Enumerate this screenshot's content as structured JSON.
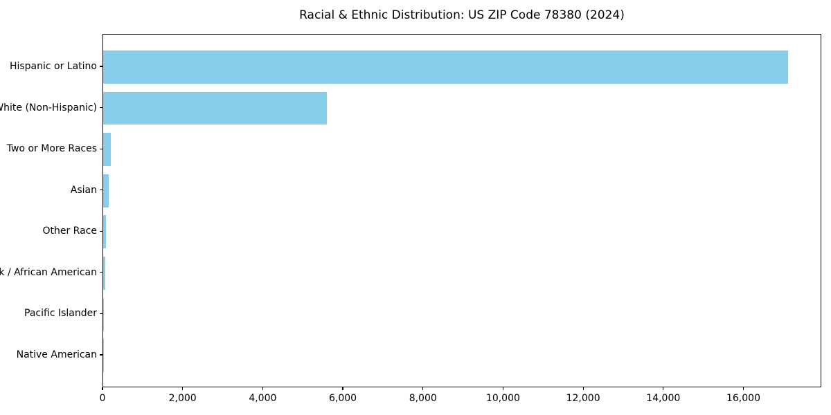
{
  "title": "Racial & Ethnic Distribution: US ZIP Code 78380 (2024)",
  "chart_data": {
    "type": "bar",
    "orientation": "horizontal",
    "title": "Racial & Ethnic Distribution: US ZIP Code 78380 (2024)",
    "xlabel": "",
    "ylabel": "",
    "categories": [
      "Hispanic or Latino",
      "White (Non-Hispanic)",
      "Two or More Races",
      "Asian",
      "Other Race",
      "Black / African American",
      "Pacific Islander",
      "Native American"
    ],
    "values": [
      17090,
      5580,
      185,
      140,
      70,
      48,
      10,
      2
    ],
    "bar_color": "#87CEEB",
    "xlim": [
      0,
      17945
    ],
    "x_ticks": [
      0,
      2000,
      4000,
      6000,
      8000,
      10000,
      12000,
      14000,
      16000
    ],
    "x_tick_labels": [
      "0",
      "2,000",
      "4,000",
      "6,000",
      "8,000",
      "10,000",
      "12,000",
      "14,000",
      "16,000"
    ],
    "grid": false,
    "legend": null
  }
}
